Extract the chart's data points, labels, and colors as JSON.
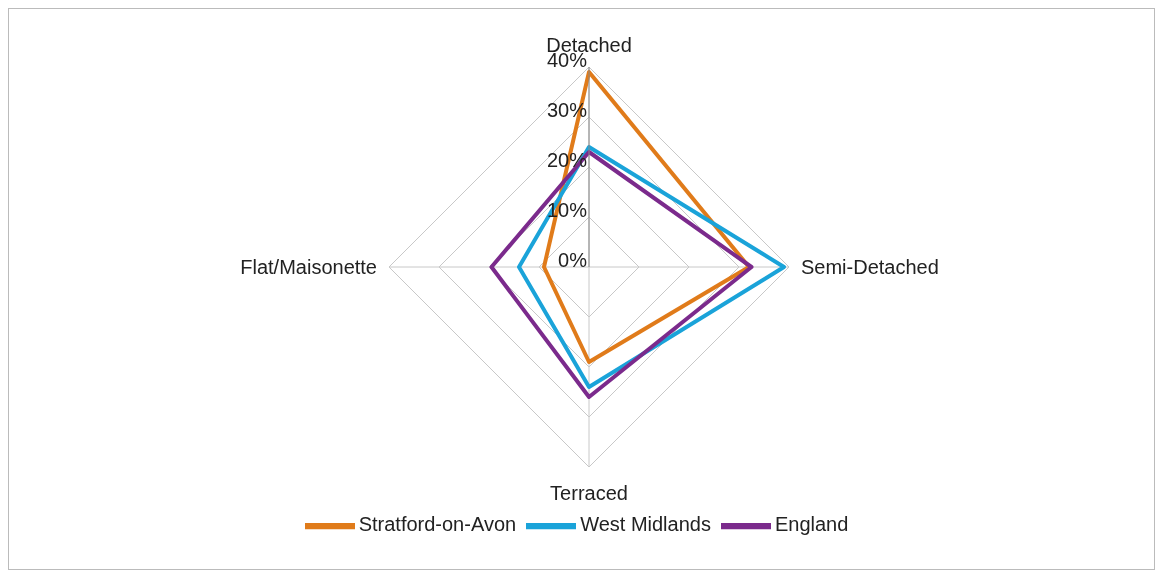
{
  "chart_data": {
    "type": "radar",
    "categories": [
      "Detached",
      "Semi-Detached",
      "Terraced",
      "Flat/Maisonette"
    ],
    "series": [
      {
        "name": "Stratford-on-Avon",
        "color": "#e07b1a",
        "values": [
          39,
          32,
          19,
          9
        ]
      },
      {
        "name": "West Midlands",
        "color": "#1aa3d9",
        "values": [
          24,
          39,
          24,
          14
        ]
      },
      {
        "name": "England",
        "color": "#7b2a8c",
        "values": [
          23,
          32.5,
          26,
          19.5
        ]
      }
    ],
    "ylim": [
      0,
      40
    ],
    "yticks": [
      {
        "value": 0,
        "label": "0%"
      },
      {
        "value": 10,
        "label": "10%"
      },
      {
        "value": 20,
        "label": "20%"
      },
      {
        "value": 30,
        "label": "30%"
      },
      {
        "value": 40,
        "label": "40%"
      }
    ],
    "grid": true,
    "legend": "bottom"
  }
}
